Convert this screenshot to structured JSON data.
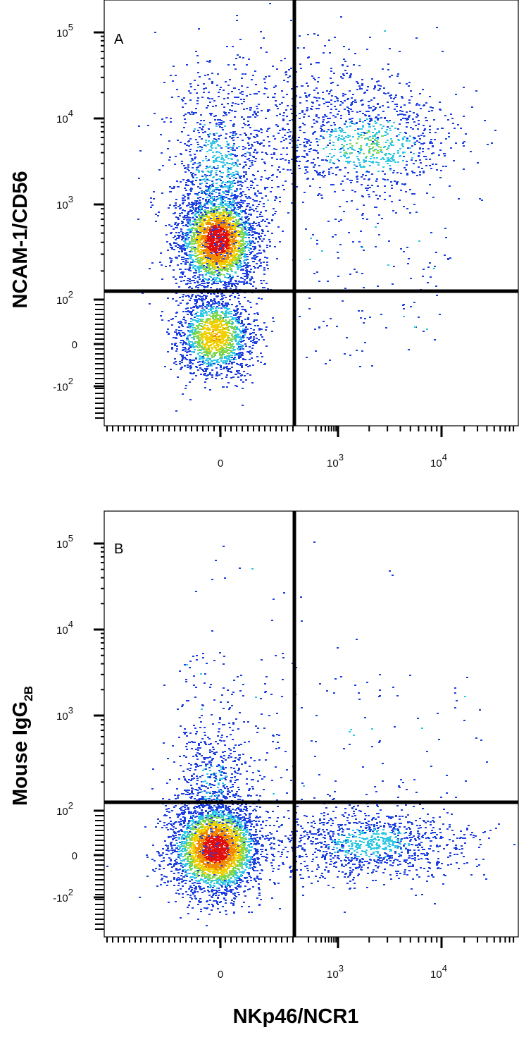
{
  "chart_data": [
    {
      "type": "scatter",
      "panel_label": "A",
      "xlabel": "NKp46/NCR1",
      "ylabel": "NCAM-1/CD56",
      "x_scale": "biexponential",
      "y_scale": "biexponential",
      "x_ticks": [
        {
          "value": 0,
          "base": "0",
          "exp": ""
        },
        {
          "value": 1000,
          "base": "10",
          "exp": "3"
        },
        {
          "value": 10000,
          "base": "10",
          "exp": "4"
        }
      ],
      "y_ticks": [
        {
          "value": 100000,
          "base": "10",
          "exp": "5"
        },
        {
          "value": 10000,
          "base": "10",
          "exp": "4"
        },
        {
          "value": 1000,
          "base": "10",
          "exp": "3"
        },
        {
          "value": 100,
          "base": "10",
          "exp": "2"
        },
        {
          "value": 0,
          "base": "0",
          "exp": ""
        },
        {
          "value": -100,
          "base": "-10",
          "exp": "2"
        }
      ],
      "gate": {
        "x": 400,
        "y": 180
      },
      "populations": [
        {
          "name": "NCAM-1+ NKp46- cluster",
          "x_center": 0,
          "y_center": 600,
          "density": "high"
        },
        {
          "name": "double-negative cluster",
          "x_center": 0,
          "y_center": 20,
          "density": "high"
        },
        {
          "name": "NCAM-1+ NKp46+ cluster",
          "x_center": 2500,
          "y_center": 5000,
          "density": "medium"
        },
        {
          "name": "NCAM-1-bright NKp46- scatter",
          "x_center": 50,
          "y_center": 3000,
          "density": "low"
        }
      ]
    },
    {
      "type": "scatter",
      "panel_label": "B",
      "xlabel": "NKp46/NCR1",
      "ylabel": "Mouse IgG",
      "ylabel_sub": "2B",
      "x_scale": "biexponential",
      "y_scale": "biexponential",
      "x_ticks": [
        {
          "value": 0,
          "base": "0",
          "exp": ""
        },
        {
          "value": 1000,
          "base": "10",
          "exp": "3"
        },
        {
          "value": 10000,
          "base": "10",
          "exp": "4"
        }
      ],
      "y_ticks": [
        {
          "value": 100000,
          "base": "10",
          "exp": "5"
        },
        {
          "value": 10000,
          "base": "10",
          "exp": "4"
        },
        {
          "value": 1000,
          "base": "10",
          "exp": "3"
        },
        {
          "value": 100,
          "base": "10",
          "exp": "2"
        },
        {
          "value": 0,
          "base": "0",
          "exp": ""
        },
        {
          "value": -100,
          "base": "-10",
          "exp": "2"
        }
      ],
      "gate": {
        "x": 400,
        "y": 180
      },
      "populations": [
        {
          "name": "isotype-negative cluster",
          "x_center": 0,
          "y_center": 10,
          "density": "high"
        },
        {
          "name": "NKp46+ isotype-negative cluster",
          "x_center": 2000,
          "y_center": 20,
          "density": "medium"
        },
        {
          "name": "sparse background",
          "x_center": 0,
          "y_center": 800,
          "density": "low"
        }
      ]
    }
  ],
  "colors": {
    "low_density": "#1c3fe0",
    "mid_density": "#2fc7e6",
    "high_density": "#f0d000",
    "peak_density": "#e01010",
    "gate_line": "#000000"
  },
  "x_axis_title": "NKp46/NCR1"
}
